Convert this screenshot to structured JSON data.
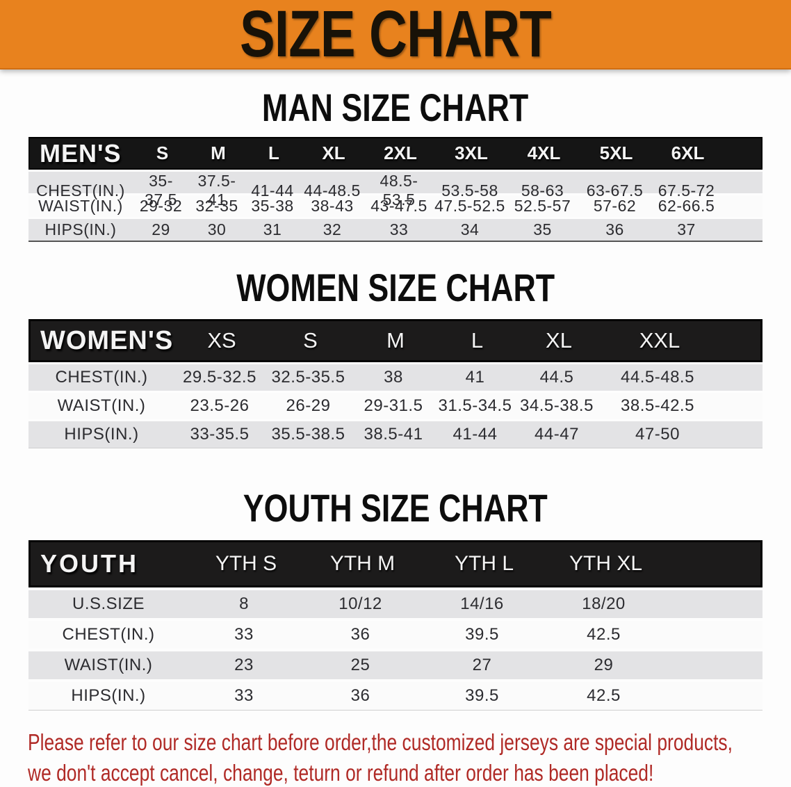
{
  "banner": {
    "title": "SIZE CHART"
  },
  "sections": [
    {
      "heading": "MAN SIZE CHART",
      "corner": "MEN'S",
      "columns": [
        "S",
        "M",
        "L",
        "XL",
        "2XL",
        "3XL",
        "4XL",
        "5XL",
        "6XL"
      ],
      "rows": [
        {
          "label": "CHEST(IN.)",
          "values": [
            "35-37.5",
            "37.5-41",
            "41-44",
            "44-48.5",
            "48.5-53.5",
            "53.5-58",
            "58-63",
            "63-67.5",
            "67.5-72"
          ]
        },
        {
          "label": "WAIST(IN.)",
          "values": [
            "29-32",
            "32-35",
            "35-38",
            "38-43",
            "43-47.5",
            "47.5-52.5",
            "52.5-57",
            "57-62",
            "62-66.5"
          ]
        },
        {
          "label": "HIPS(IN.)",
          "values": [
            "29",
            "30",
            "31",
            "32",
            "33",
            "34",
            "35",
            "36",
            "37"
          ]
        }
      ]
    },
    {
      "heading": "WOMEN SIZE CHART",
      "corner": "WOMEN'S",
      "columns": [
        "XS",
        "S",
        "M",
        "L",
        "XL",
        "XXL"
      ],
      "rows": [
        {
          "label": "CHEST(IN.)",
          "values": [
            "29.5-32.5",
            "32.5-35.5",
            "38",
            "41",
            "44.5",
            "44.5-48.5"
          ]
        },
        {
          "label": "WAIST(IN.)",
          "values": [
            "23.5-26",
            "26-29",
            "29-31.5",
            "31.5-34.5",
            "34.5-38.5",
            "38.5-42.5"
          ]
        },
        {
          "label": "HIPS(IN.)",
          "values": [
            "33-35.5",
            "35.5-38.5",
            "38.5-41",
            "41-44",
            "44-47",
            "47-50"
          ]
        }
      ]
    },
    {
      "heading": "YOUTH SIZE CHART",
      "corner": "YOUTH",
      "columns": [
        "YTH S",
        "YTH M",
        "YTH L",
        "YTH XL"
      ],
      "rows": [
        {
          "label": "U.S.SIZE",
          "values": [
            "8",
            "10/12",
            "14/16",
            "18/20"
          ]
        },
        {
          "label": "CHEST(IN.)",
          "values": [
            "33",
            "36",
            "39.5",
            "42.5"
          ]
        },
        {
          "label": "WAIST(IN.)",
          "values": [
            "23",
            "25",
            "27",
            "29"
          ]
        },
        {
          "label": "HIPS(IN.)",
          "values": [
            "33",
            "36",
            "39.5",
            "42.5"
          ]
        }
      ]
    }
  ],
  "disclaimer": {
    "line1": "Please refer to our size chart before order,the customized jerseys are special products,",
    "line2": "we don't accept cancel, change, teturn or refund after order has been placed!"
  },
  "colors": {
    "banner_bg": "#e8821e",
    "bar_black": "#1c1b1b",
    "row_gray": "#e3e3e5",
    "row_white": "#fbfbfb",
    "disclaimer_red": "#b02a26"
  }
}
